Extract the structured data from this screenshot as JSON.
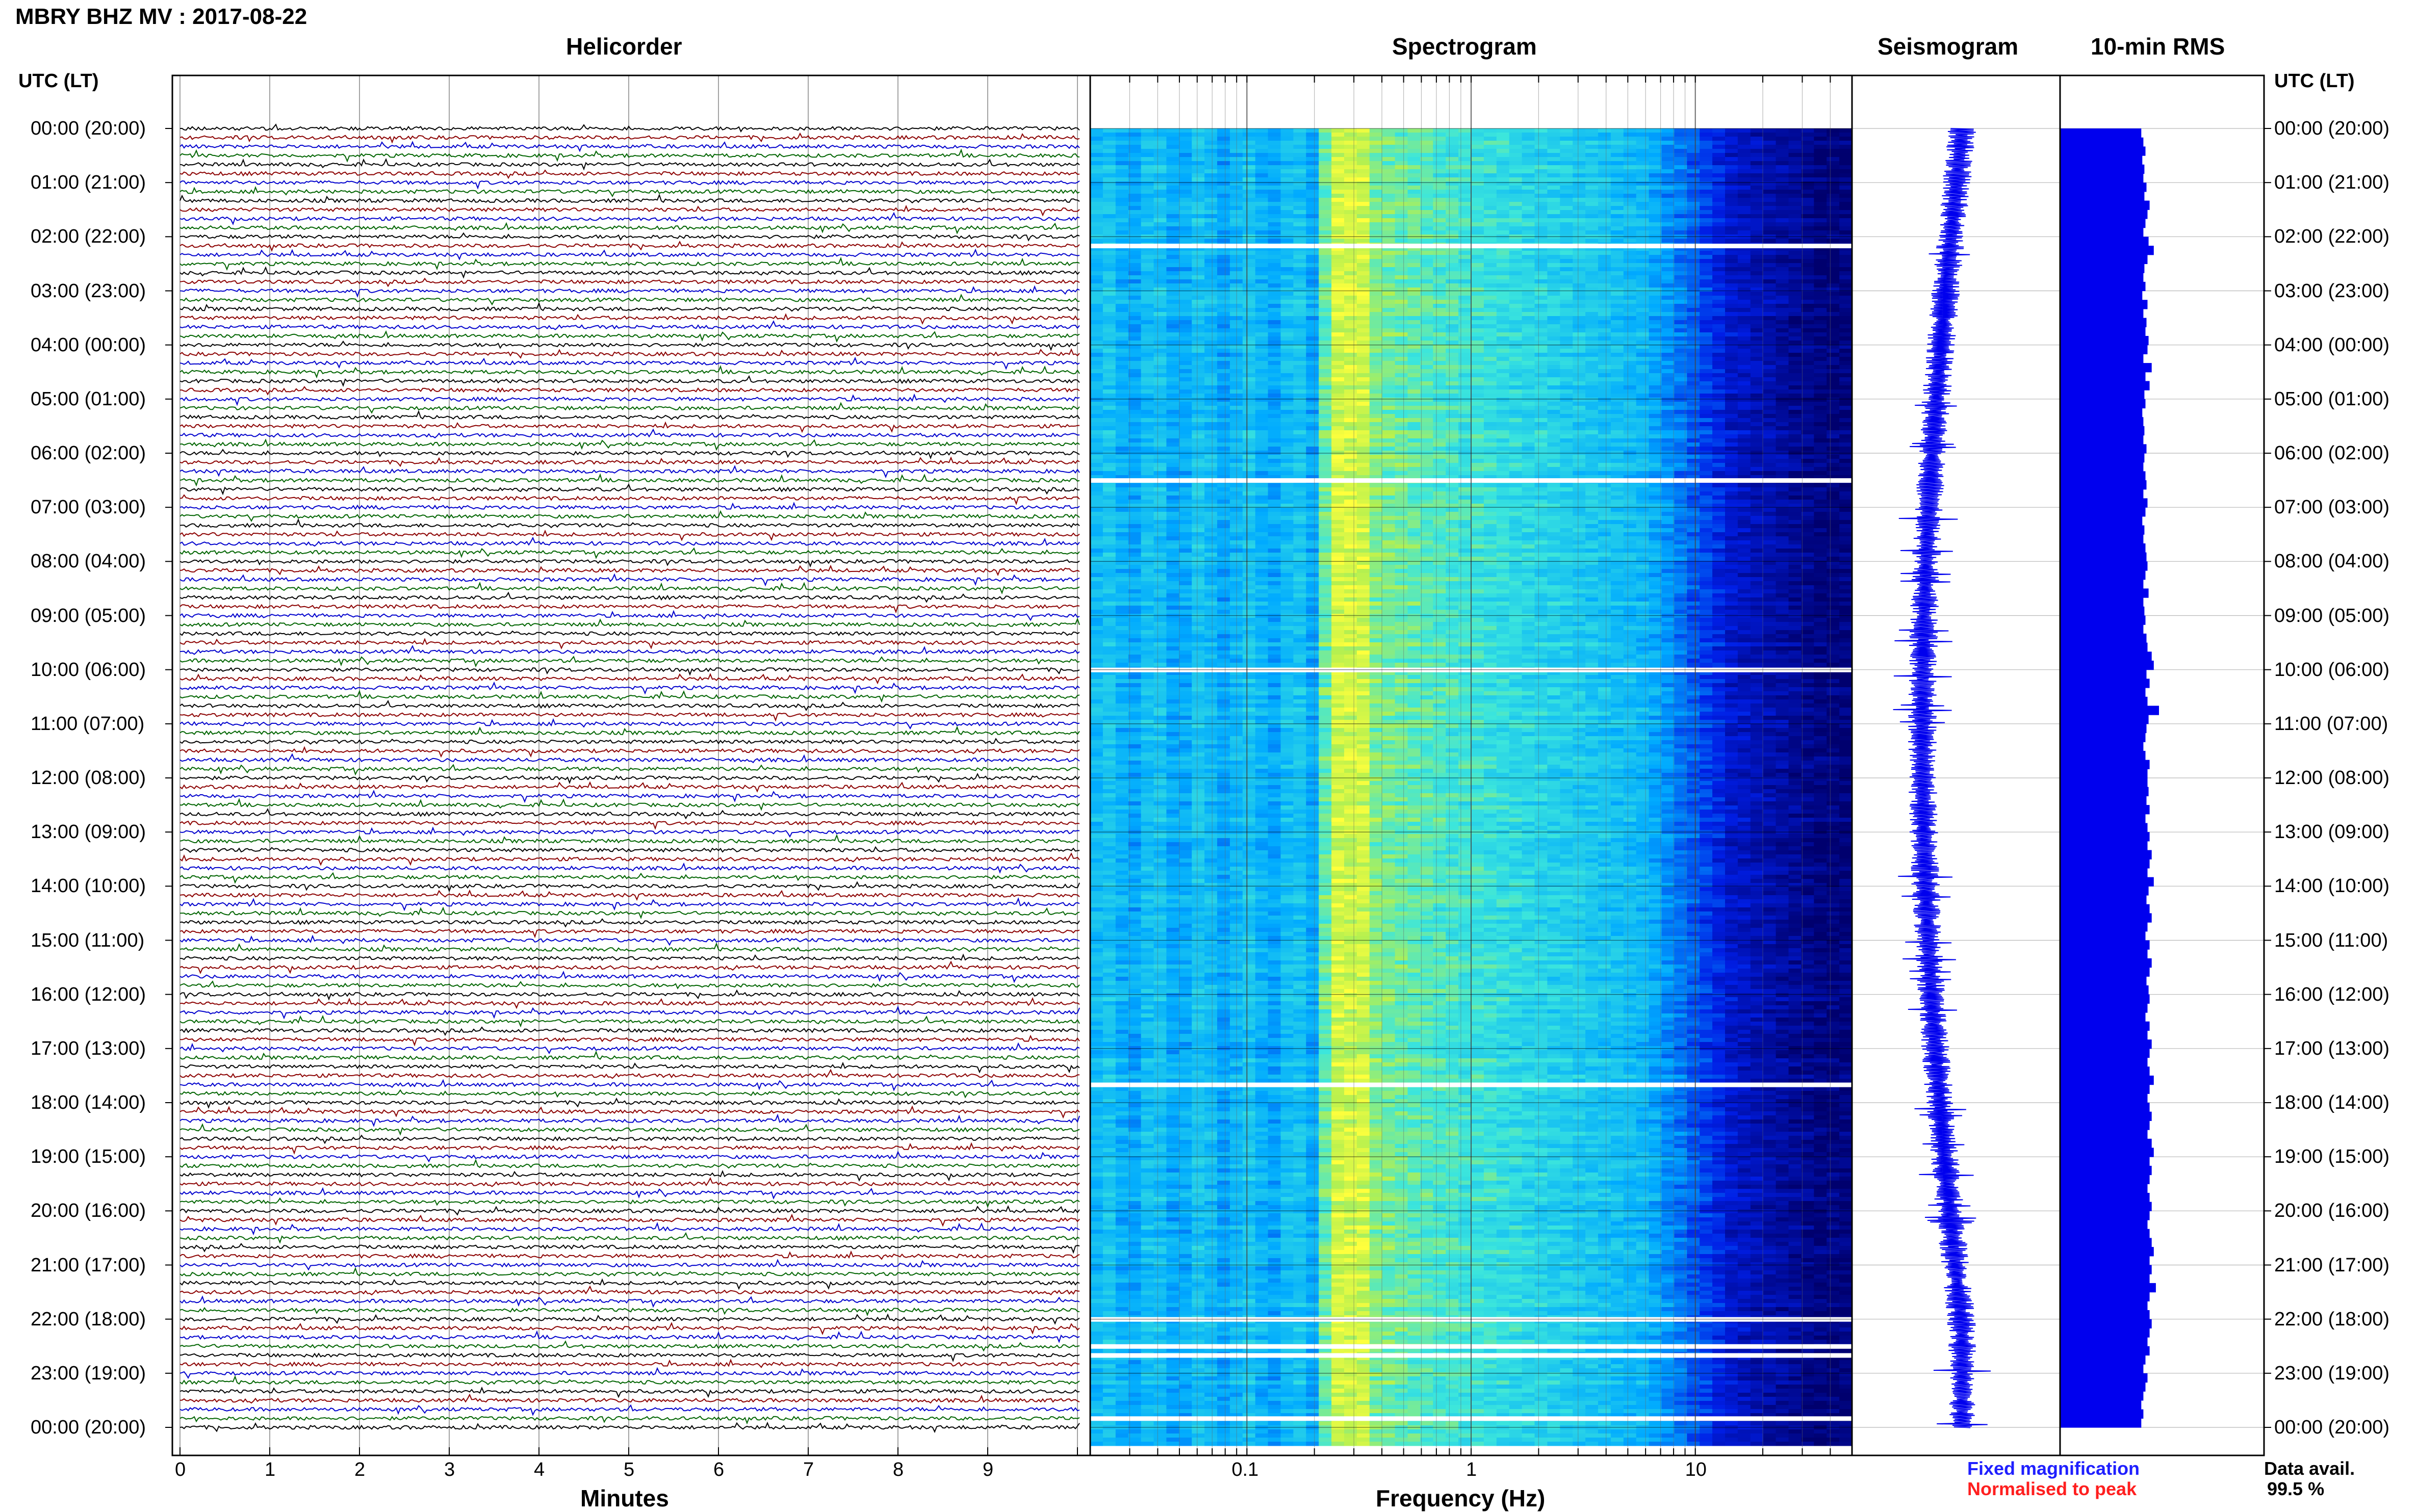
{
  "header": {
    "station": "MBRY BHZ MV : 2017-08-22"
  },
  "panels": {
    "helicorder": "Helicorder",
    "spectrogram": "Spectrogram",
    "seismogram": "Seismogram",
    "rms": "10-min RMS"
  },
  "time_axis": {
    "heading_left": "UTC (LT)",
    "heading_right": "UTC (LT)",
    "labels": [
      "00:00 (20:00)",
      "01:00 (21:00)",
      "02:00 (22:00)",
      "03:00 (23:00)",
      "04:00 (00:00)",
      "05:00 (01:00)",
      "06:00 (02:00)",
      "07:00 (03:00)",
      "08:00 (04:00)",
      "09:00 (05:00)",
      "10:00 (06:00)",
      "11:00 (07:00)",
      "12:00 (08:00)",
      "13:00 (09:00)",
      "14:00 (10:00)",
      "15:00 (11:00)",
      "16:00 (12:00)",
      "17:00 (13:00)",
      "18:00 (14:00)",
      "19:00 (15:00)",
      "20:00 (16:00)",
      "21:00 (17:00)",
      "22:00 (18:00)",
      "23:00 (19:00)",
      "00:00 (20:00)"
    ]
  },
  "helicorder_axis": {
    "title": "Minutes",
    "ticks": [
      "0",
      "1",
      "2",
      "3",
      "4",
      "5",
      "6",
      "7",
      "8",
      "9"
    ]
  },
  "spectrogram_axis": {
    "title": "Frequency (Hz)",
    "ticks": [
      "0.1",
      "1",
      "10"
    ]
  },
  "legend": {
    "fixed": "Fixed magnification",
    "normalised": "Normalised to peak",
    "data_avail_label": "Data avail.",
    "data_avail_value": "99.5 %"
  },
  "colors": {
    "trace_cycle": [
      "#000000",
      "#8b0000",
      "#0000cd",
      "#006400"
    ],
    "rms_bar": "#0000ee",
    "seismo": "#0000ee",
    "spectro_low": "#00006e",
    "spectro_high": "#ffff3c"
  },
  "chart_data": {
    "type": "heatmap",
    "title": "MBRY BHZ MV : 2017-08-22",
    "x_helicorder": {
      "label": "Minutes",
      "range": [
        0,
        10
      ]
    },
    "x_spectrogram": {
      "label": "Frequency (Hz)",
      "scale": "log",
      "range": [
        0.02,
        50
      ]
    },
    "y": {
      "label": "UTC (LT)",
      "range": [
        "00:00",
        "24:00"
      ],
      "lines_per_hour": 6
    },
    "spectrogram_gaps_utc": [
      "02:10",
      "06:30",
      "10:00",
      "17:40",
      "22:00",
      "22:30",
      "22:40",
      "23:50"
    ],
    "rms_10min_relative": [
      0.78,
      0.8,
      0.82,
      0.79,
      0.81,
      0.8,
      0.83,
      0.81,
      0.86,
      0.84,
      0.82,
      0.8,
      0.85,
      0.9,
      0.84,
      0.81,
      0.8,
      0.82,
      0.79,
      0.84,
      0.8,
      0.83,
      0.82,
      0.85,
      0.84,
      0.8,
      0.88,
      0.82,
      0.86,
      0.81,
      0.82,
      0.79,
      0.8,
      0.81,
      0.8,
      0.83,
      0.81,
      0.8,
      0.82,
      0.83,
      0.8,
      0.84,
      0.82,
      0.79,
      0.81,
      0.8,
      0.82,
      0.83,
      0.84,
      0.82,
      0.8,
      0.85,
      0.8,
      0.81,
      0.82,
      0.8,
      0.83,
      0.84,
      0.88,
      0.9,
      0.83,
      0.86,
      0.82,
      0.84,
      0.95,
      0.85,
      0.83,
      0.82,
      0.8,
      0.82,
      0.86,
      0.84,
      0.84,
      0.85,
      0.83,
      0.86,
      0.82,
      0.84,
      0.86,
      0.84,
      0.88,
      0.86,
      0.84,
      0.9,
      0.85,
      0.83,
      0.86,
      0.88,
      0.84,
      0.82,
      0.86,
      0.84,
      0.88,
      0.86,
      0.83,
      0.85,
      0.86,
      0.84,
      0.82,
      0.86,
      0.84,
      0.88,
      0.86,
      0.84,
      0.86,
      0.9,
      0.86,
      0.84,
      0.86,
      0.88,
      0.86,
      0.84,
      0.88,
      0.9,
      0.86,
      0.88,
      0.86,
      0.84,
      0.86,
      0.88,
      0.86,
      0.84,
      0.86,
      0.88,
      0.9,
      0.86,
      0.88,
      0.86,
      0.92,
      0.86,
      0.84,
      0.86,
      0.88,
      0.86,
      0.84,
      0.86,
      0.82,
      0.8,
      0.84,
      0.82,
      0.8,
      0.78,
      0.8,
      0.78
    ]
  }
}
